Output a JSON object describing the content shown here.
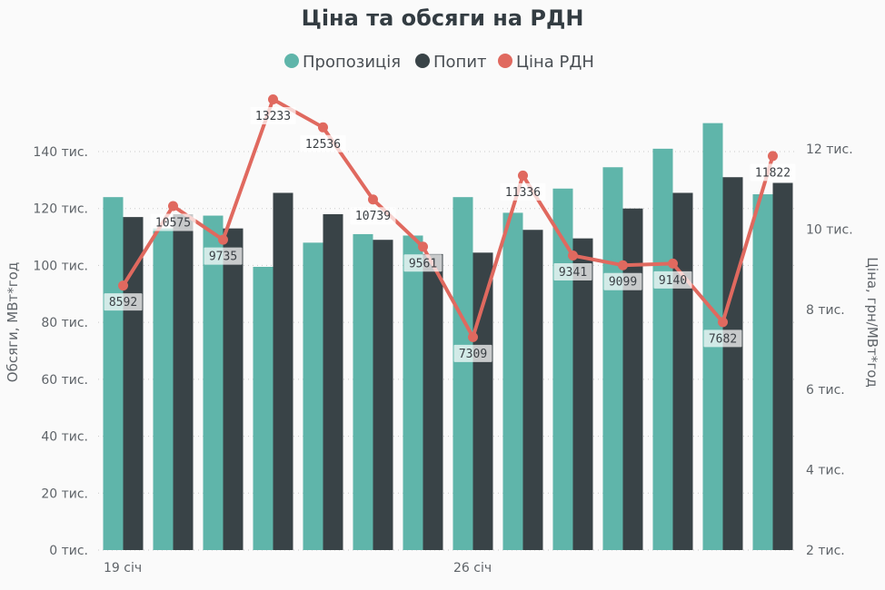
{
  "chart_data": {
    "type": "bar",
    "title": "Ціна та обсяги на РДН",
    "legend_position": "top-center",
    "grid": true,
    "colors": {
      "supply": "#5fb5aa",
      "demand": "#394347",
      "price": "#e0695f"
    },
    "x_labels": [
      {
        "index": 0,
        "label": "19 січ"
      },
      {
        "index": 7,
        "label": "26 січ"
      }
    ],
    "series": [
      {
        "name": "Пропозиція",
        "type": "bar",
        "axis": "left",
        "values": [
          124000,
          113000,
          117500,
          99500,
          108000,
          111000,
          110500,
          124000,
          118500,
          127000,
          134500,
          141000,
          150000,
          125000
        ]
      },
      {
        "name": "Попит",
        "type": "bar",
        "axis": "left",
        "values": [
          117000,
          118000,
          113000,
          125500,
          118000,
          109000,
          104000,
          104500,
          112500,
          109500,
          120000,
          125500,
          131000,
          129000
        ]
      },
      {
        "name": "Ціна РДН",
        "type": "line",
        "axis": "right",
        "values": [
          8592,
          10575,
          9735,
          13233,
          12536,
          10739,
          9561,
          7309,
          11336,
          9341,
          9099,
          9140,
          7682,
          11822
        ]
      }
    ],
    "y_left": {
      "title": "Обсяги, МВт*год",
      "range": [
        0,
        140000
      ],
      "ticks": [
        {
          "value": 0,
          "label": "0 тис."
        },
        {
          "value": 20000,
          "label": "20 тис."
        },
        {
          "value": 40000,
          "label": "40 тис."
        },
        {
          "value": 60000,
          "label": "60 тис."
        },
        {
          "value": 80000,
          "label": "80 тис."
        },
        {
          "value": 100000,
          "label": "100 тис."
        },
        {
          "value": 120000,
          "label": "120 тис."
        },
        {
          "value": 140000,
          "label": "140 тис."
        }
      ]
    },
    "y_right": {
      "title": "Ціна, грн/МВт*год",
      "range": [
        2000,
        12000
      ],
      "ticks": [
        {
          "value": 2000,
          "label": "2 тис."
        },
        {
          "value": 4000,
          "label": "4 тис."
        },
        {
          "value": 6000,
          "label": "6 тис."
        },
        {
          "value": 8000,
          "label": "8 тис."
        },
        {
          "value": 10000,
          "label": "10 тис."
        },
        {
          "value": 12000,
          "label": "12 тис."
        }
      ]
    }
  }
}
